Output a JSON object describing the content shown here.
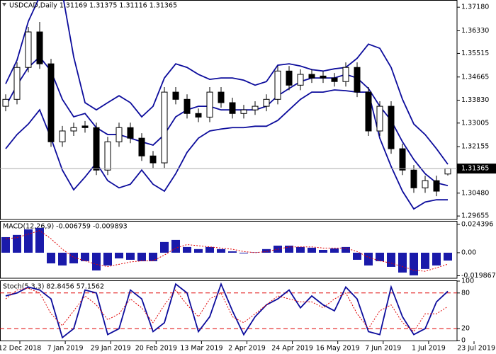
{
  "chart_data": [
    {
      "type": "candlestick",
      "title": "USDCAD,Daily  1.31169 1.31375 1.31116 1.31365",
      "open": [
        1.3361,
        1.3386,
        1.3501,
        1.3629,
        1.3514,
        1.3233,
        1.3272,
        1.329,
        1.3284,
        1.3131,
        1.3233,
        1.3284,
        1.3246,
        1.3182,
        1.3157,
        1.3412,
        1.3386,
        1.3335,
        1.3322,
        1.3412,
        1.3374,
        1.3335,
        1.3348,
        1.3361,
        1.3386,
        1.3488,
        1.3437,
        1.3476,
        1.347,
        1.3463,
        1.345,
        1.3501,
        1.3412,
        1.3272,
        1.3361,
        1.3208,
        1.3131,
        1.3067,
        1.3093,
        1.31169
      ],
      "high": [
        1.3404,
        1.3519,
        1.3647,
        1.3665,
        1.3532,
        1.329,
        1.3302,
        1.3308,
        1.3302,
        1.3251,
        1.3302,
        1.3302,
        1.3264,
        1.32,
        1.343,
        1.343,
        1.3404,
        1.3353,
        1.343,
        1.343,
        1.3392,
        1.3366,
        1.3379,
        1.3404,
        1.3506,
        1.3506,
        1.3494,
        1.3494,
        1.3488,
        1.3481,
        1.3519,
        1.3519,
        1.343,
        1.3379,
        1.3379,
        1.3226,
        1.3149,
        1.3111,
        1.3111,
        1.31375
      ],
      "low": [
        1.3343,
        1.3368,
        1.3483,
        1.3496,
        1.3215,
        1.3215,
        1.3254,
        1.3266,
        1.3113,
        1.3113,
        1.3215,
        1.3228,
        1.3164,
        1.3139,
        1.3139,
        1.3368,
        1.3317,
        1.3304,
        1.3304,
        1.3356,
        1.3317,
        1.3317,
        1.333,
        1.3343,
        1.3368,
        1.3419,
        1.3419,
        1.3445,
        1.3445,
        1.3432,
        1.3432,
        1.3394,
        1.3254,
        1.3254,
        1.319,
        1.3113,
        1.3049,
        1.3049,
        1.3037,
        1.31116
      ],
      "close": [
        1.3386,
        1.3501,
        1.3629,
        1.3514,
        1.3233,
        1.3272,
        1.3284,
        1.3284,
        1.3131,
        1.3233,
        1.3284,
        1.3246,
        1.3182,
        1.3157,
        1.3412,
        1.3386,
        1.3335,
        1.3322,
        1.3412,
        1.3374,
        1.3335,
        1.3348,
        1.3361,
        1.3386,
        1.3488,
        1.3437,
        1.3476,
        1.3463,
        1.3463,
        1.345,
        1.3501,
        1.3412,
        1.3272,
        1.3361,
        1.3208,
        1.3131,
        1.3067,
        1.3093,
        1.3055,
        1.31365
      ],
      "up_color": "#ffffff",
      "down_color": "#000000",
      "overlays": [
        {
          "color": "#0c0c9c",
          "values": [
            1.3442,
            1.3527,
            1.3667,
            1.3756,
            1.3795,
            1.3769,
            1.3539,
            1.3374,
            1.3348,
            1.3374,
            1.3399,
            1.3374,
            1.3323,
            1.3361,
            1.3463,
            1.3514,
            1.3501,
            1.3476,
            1.3458,
            1.3463,
            1.3463,
            1.3455,
            1.3437,
            1.345,
            1.3509,
            1.3514,
            1.3506,
            1.3493,
            1.3488,
            1.3496,
            1.3501,
            1.3534,
            1.3585,
            1.357,
            1.3501,
            1.3386,
            1.3297,
            1.3259,
            1.3208,
            1.3152
          ]
        },
        {
          "color": "#0c0c9c",
          "values": [
            1.3361,
            1.3437,
            1.3501,
            1.3539,
            1.3488,
            1.3386,
            1.3323,
            1.3335,
            1.3284,
            1.3259,
            1.3259,
            1.3246,
            1.3233,
            1.3221,
            1.3259,
            1.3323,
            1.3348,
            1.3361,
            1.3361,
            1.3348,
            1.3348,
            1.3348,
            1.3348,
            1.3361,
            1.3399,
            1.3425,
            1.345,
            1.3463,
            1.3463,
            1.3463,
            1.3476,
            1.3463,
            1.3425,
            1.3361,
            1.331,
            1.3233,
            1.3169,
            1.3118,
            1.3085,
            1.3075
          ]
        },
        {
          "color": "#0c0c9c",
          "values": [
            1.3208,
            1.3259,
            1.3297,
            1.3348,
            1.3246,
            1.3131,
            1.306,
            1.3106,
            1.3157,
            1.3093,
            1.3067,
            1.308,
            1.3131,
            1.308,
            1.3055,
            1.3118,
            1.3195,
            1.3246,
            1.3272,
            1.3279,
            1.3284,
            1.3284,
            1.3289,
            1.3289,
            1.331,
            1.3348,
            1.3386,
            1.3412,
            1.3412,
            1.342,
            1.3417,
            1.3412,
            1.3412,
            1.3246,
            1.3144,
            1.3055,
            1.2991,
            1.3016,
            1.3024,
            1.3024
          ]
        }
      ],
      "current_price": 1.31365,
      "ylim": [
        1.2953,
        1.3744
      ],
      "yticks": [
        {
          "value": 1.3718,
          "label": "1.37180"
        },
        {
          "value": 1.3633,
          "label": "1.36330"
        },
        1.35515,
        1.34665,
        {
          "value": 1.3383,
          "label": "1.33830"
        },
        1.33005,
        1.32155,
        {
          "value": 1.3048,
          "label": "1.30480"
        },
        1.29655
      ]
    },
    {
      "type": "bar",
      "title": "MACD(12,26,9) -0.006759 -0.009893",
      "color": "#1a1aaa",
      "values": [
        0.0134,
        0.0153,
        0.0201,
        0.0214,
        -0.0092,
        -0.011,
        -0.0092,
        -0.0073,
        -0.0153,
        -0.011,
        -0.0049,
        -0.0061,
        -0.0073,
        -0.0073,
        0.0092,
        0.011,
        0.0049,
        0.0031,
        0.0049,
        0.0031,
        0.0012,
        -0.0006,
        0.0003,
        0.0031,
        0.0061,
        0.0061,
        0.0049,
        0.0043,
        0.0024,
        0.0037,
        0.0049,
        -0.0061,
        -0.011,
        -0.0073,
        -0.0122,
        -0.0171,
        -0.0195,
        -0.014,
        -0.011,
        -0.006759
      ],
      "signal": {
        "color": "#e00000",
        "values": [
          0.012,
          0.013,
          0.016,
          0.019,
          0.012,
          0.003,
          -0.004,
          -0.007,
          -0.01,
          -0.012,
          -0.01,
          -0.008,
          -0.007,
          -0.007,
          -0.002,
          0.004,
          0.007,
          0.006,
          0.005,
          0.004,
          0.003,
          0.001,
          0,
          0.001,
          0.003,
          0.005,
          0.005,
          0.005,
          0.004,
          0.004,
          0.004,
          0.001,
          -0.004,
          -0.007,
          -0.009,
          -0.012,
          -0.015,
          -0.016,
          -0.013,
          -0.009893
        ]
      },
      "ylim": [
        -0.022,
        0.0274
      ],
      "yticks": [
        0.024396,
        {
          "value": 0,
          "label": "0.00"
        },
        -0.019867
      ]
    },
    {
      "type": "line",
      "title": "Stoch(5,3,3) 82.8456 57.1562",
      "series": [
        {
          "color": "#0c0c9c",
          "values": [
            75,
            80,
            90,
            85,
            70,
            5,
            20,
            85,
            80,
            10,
            20,
            85,
            70,
            15,
            30,
            95,
            80,
            15,
            40,
            95,
            50,
            10,
            40,
            60,
            70,
            85,
            55,
            75,
            60,
            50,
            90,
            70,
            15,
            10,
            90,
            40,
            10,
            20,
            65,
            82.8456
          ]
        },
        {
          "color": "#e00000",
          "dashed": true,
          "values": [
            70,
            85,
            88,
            80,
            45,
            25,
            50,
            75,
            60,
            35,
            45,
            70,
            55,
            30,
            60,
            85,
            60,
            40,
            70,
            80,
            40,
            30,
            45,
            60,
            75,
            70,
            65,
            65,
            55,
            70,
            80,
            45,
            20,
            50,
            60,
            30,
            15,
            45,
            45,
            57.1562
          ]
        }
      ],
      "levels": [
        80,
        20
      ],
      "level_color": "#e00000",
      "ylim": [
        0,
        100
      ],
      "yticks": [
        100,
        80,
        20,
        0
      ],
      "x_labels": [
        "12 Dec 2018",
        "7 Jan 2019",
        "29 Jan 2019",
        "20 Feb 2019",
        "13 Mar 2019",
        "2 Apr 2019",
        "24 Apr 2019",
        "16 May 2019",
        "7 Jun 2019",
        "1 Jul 2019",
        "23 Jul 2019"
      ]
    }
  ]
}
